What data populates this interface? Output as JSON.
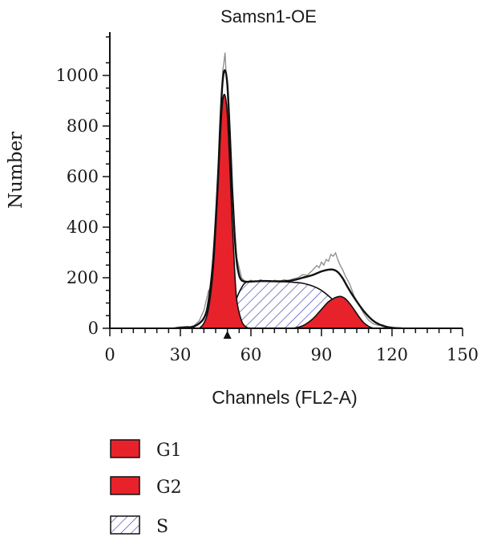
{
  "chart_data": {
    "type": "area",
    "title": "Samsn1-OE",
    "xlabel": "Channels (FL2-A)",
    "ylabel": "Number",
    "xlim": [
      0,
      150
    ],
    "ylim": [
      0,
      1100
    ],
    "xticks": [
      0,
      30,
      60,
      90,
      120,
      150
    ],
    "yticks": [
      0,
      200,
      400,
      600,
      800,
      1000
    ],
    "marker_x": 50,
    "colors": {
      "G1": "#e8222b",
      "G2": "#e8222b",
      "S_hatch": "#3c3cb4",
      "line": "#111111"
    },
    "series": [
      {
        "name": "G1",
        "fill": "solid",
        "x": [
          38,
          40,
          42,
          44,
          46,
          47,
          48,
          49,
          50,
          51,
          52,
          53,
          54,
          56,
          58,
          60
        ],
        "values": [
          0,
          20,
          80,
          240,
          560,
          760,
          900,
          920,
          840,
          650,
          430,
          240,
          110,
          30,
          5,
          0
        ]
      },
      {
        "name": "G2",
        "fill": "solid",
        "x": [
          78,
          82,
          86,
          90,
          93,
          96,
          98,
          100,
          102,
          104,
          106,
          108,
          110,
          112
        ],
        "values": [
          0,
          10,
          35,
          75,
          105,
          122,
          126,
          118,
          98,
          72,
          45,
          22,
          8,
          0
        ]
      },
      {
        "name": "S",
        "fill": "hatch",
        "x": [
          48,
          50,
          52,
          54,
          56,
          58,
          62,
          66,
          70,
          74,
          78,
          82,
          86,
          90,
          94,
          96,
          98,
          100,
          104,
          108,
          110
        ],
        "values": [
          0,
          20,
          60,
          120,
          160,
          182,
          186,
          186,
          185,
          184,
          182,
          178,
          168,
          150,
          120,
          100,
          75,
          50,
          20,
          3,
          0
        ]
      }
    ],
    "total_fit": {
      "x": [
        28,
        32,
        36,
        40,
        42,
        44,
        46,
        47,
        48,
        49,
        50,
        51,
        52,
        53,
        54,
        55,
        56,
        58,
        62,
        66,
        70,
        74,
        78,
        82,
        86,
        90,
        93,
        95,
        97,
        99,
        101,
        104,
        108,
        112,
        116,
        120,
        124
      ],
      "values": [
        0,
        4,
        8,
        40,
        110,
        280,
        600,
        820,
        980,
        1020,
        960,
        780,
        560,
        380,
        260,
        210,
        190,
        184,
        186,
        187,
        186,
        186,
        190,
        200,
        210,
        225,
        232,
        232,
        222,
        198,
        165,
        120,
        68,
        30,
        10,
        2,
        0
      ]
    },
    "raw_histogram": {
      "x": [
        26,
        30,
        34,
        36,
        38,
        40,
        42,
        43,
        44,
        45,
        46,
        47,
        47.5,
        48,
        48.5,
        49,
        49.5,
        50,
        50.5,
        51,
        52,
        53,
        54,
        55,
        56,
        57,
        58,
        60,
        62,
        64,
        66,
        68,
        70,
        72,
        74,
        76,
        78,
        80,
        82,
        84,
        86,
        88,
        89,
        90,
        91,
        92,
        93,
        94,
        95,
        96,
        97,
        98,
        99,
        100,
        102,
        104,
        106,
        108,
        110,
        112,
        114,
        116,
        118,
        120,
        122,
        124,
        126
      ],
      "values": [
        0,
        6,
        4,
        12,
        30,
        70,
        150,
        120,
        300,
        380,
        620,
        760,
        900,
        1020,
        1050,
        1090,
        1000,
        940,
        800,
        700,
        560,
        400,
        280,
        240,
        200,
        190,
        182,
        190,
        180,
        192,
        186,
        178,
        190,
        185,
        192,
        188,
        196,
        200,
        212,
        210,
        228,
        248,
        240,
        262,
        250,
        272,
        265,
        292,
        285,
        298,
        270,
        248,
        232,
        210,
        175,
        125,
        92,
        58,
        32,
        18,
        12,
        14,
        6,
        4,
        2,
        1,
        0
      ]
    },
    "legend": [
      {
        "label": "G1",
        "fill": "solid"
      },
      {
        "label": "G2",
        "fill": "solid"
      },
      {
        "label": "S",
        "fill": "hatch"
      }
    ],
    "legend_position": "bottom-left",
    "grid": false
  }
}
